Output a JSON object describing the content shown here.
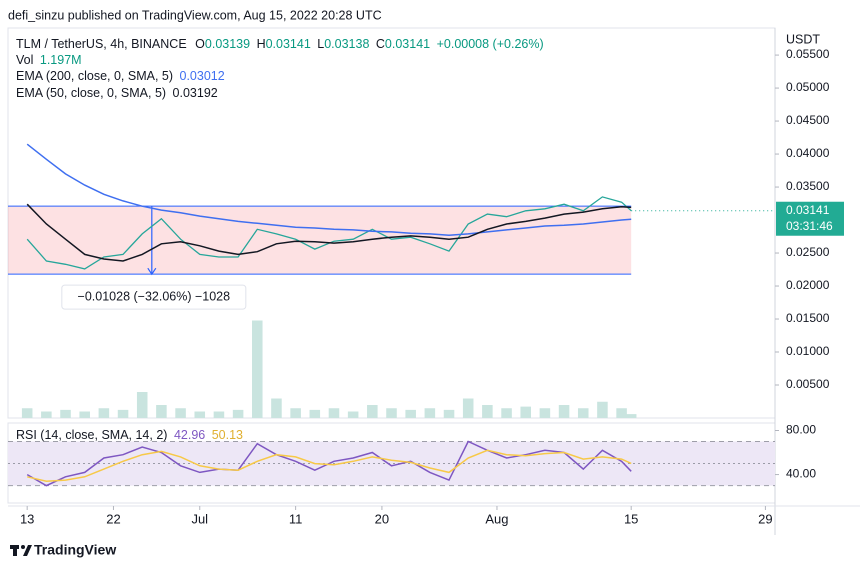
{
  "header": {
    "byline": "defi_sinzu published on TradingView.com, Aug 15, 2022 20:28 UTC",
    "ohlc": [
      {
        "label": "O",
        "value": 0.03139
      },
      {
        "label": "H",
        "value": 0.03141
      },
      {
        "label": "L",
        "value": 0.03138
      }
    ],
    "close_label": "C",
    "change": "+0.00008 (+0.26%)",
    "currency": "USDT",
    "countdown": "03:31:46",
    "logo": "TradingView"
  },
  "chart_data": [
    {
      "type": "line",
      "x": [
        "2022-06-13",
        "2022-06-15",
        "2022-06-17",
        "2022-06-19",
        "2022-06-21",
        "2022-06-23",
        "2022-06-25",
        "2022-06-27",
        "2022-06-29",
        "2022-07-01",
        "2022-07-03",
        "2022-07-05",
        "2022-07-07",
        "2022-07-09",
        "2022-07-11",
        "2022-07-13",
        "2022-07-15",
        "2022-07-17",
        "2022-07-19",
        "2022-07-21",
        "2022-07-23",
        "2022-07-25",
        "2022-07-27",
        "2022-07-29",
        "2022-07-31",
        "2022-08-02",
        "2022-08-04",
        "2022-08-06",
        "2022-08-08",
        "2022-08-10",
        "2022-08-12",
        "2022-08-14",
        "2022-08-15"
      ],
      "series": [
        {
          "name": "TLM / TetherUS, 4h, BINANCE",
          "color": "#26a69a",
          "values": [
            0.0271,
            0.0238,
            0.0233,
            0.0226,
            0.0244,
            0.0248,
            0.0279,
            0.0302,
            0.0271,
            0.0248,
            0.0244,
            0.0244,
            0.0286,
            0.0279,
            0.0271,
            0.0256,
            0.0268,
            0.0271,
            0.0286,
            0.0271,
            0.0274,
            0.0264,
            0.0253,
            0.0294,
            0.0309,
            0.0305,
            0.0314,
            0.0317,
            0.0324,
            0.0314,
            0.0335,
            0.0327,
            0.03141
          ]
        },
        {
          "name": "EMA (200, close, 0, SMA, 5)",
          "color": "#3f6ff0",
          "values": [
            0.0415,
            0.0392,
            0.037,
            0.0353,
            0.0339,
            0.0329,
            0.0321,
            0.0315,
            0.0311,
            0.0306,
            0.0302,
            0.0298,
            0.0295,
            0.0292,
            0.0289,
            0.0288,
            0.0286,
            0.0285,
            0.0283,
            0.0282,
            0.028,
            0.0279,
            0.0277,
            0.0279,
            0.0282,
            0.0285,
            0.0288,
            0.0291,
            0.0292,
            0.0294,
            0.0297,
            0.03,
            0.03012
          ]
        },
        {
          "name": "EMA (50, close, 0, SMA, 5)",
          "color": "#131722",
          "values": [
            0.0324,
            0.0294,
            0.0271,
            0.0248,
            0.0241,
            0.0238,
            0.0248,
            0.0264,
            0.0267,
            0.0261,
            0.0253,
            0.0248,
            0.0252,
            0.0264,
            0.0268,
            0.0267,
            0.0265,
            0.0267,
            0.0271,
            0.0274,
            0.0276,
            0.0274,
            0.0271,
            0.0274,
            0.0286,
            0.0294,
            0.0298,
            0.0303,
            0.0309,
            0.0312,
            0.0317,
            0.032,
            0.03192
          ]
        }
      ],
      "xlim": [
        "2022-06-11",
        "2022-08-30"
      ],
      "xticks": [
        {
          "value": "2022-06-13",
          "label": "13"
        },
        {
          "value": "2022-06-22",
          "label": "22"
        },
        {
          "value": "2022-07-01",
          "label": "Jul"
        },
        {
          "value": "2022-07-11",
          "label": "11"
        },
        {
          "value": "2022-07-20",
          "label": "20"
        },
        {
          "value": "2022-08-01",
          "label": "Aug"
        },
        {
          "value": "2022-08-15",
          "label": "15"
        },
        {
          "value": "2022-08-29",
          "label": "29"
        }
      ],
      "ylim": [
        0,
        0.0588
      ],
      "yticks": [
        {
          "value": 0.055,
          "label": "0.05500"
        },
        {
          "value": 0.05,
          "label": "0.05000"
        },
        {
          "value": 0.045,
          "label": "0.04500"
        },
        {
          "value": 0.04,
          "label": "0.04000"
        },
        {
          "value": 0.035,
          "label": "0.03500"
        },
        {
          "value": 0.025,
          "label": "0.02500"
        },
        {
          "value": 0.02,
          "label": "0.02000"
        },
        {
          "value": 0.015,
          "label": "0.01500"
        },
        {
          "value": 0.01,
          "label": "0.01000"
        },
        {
          "value": 0.005,
          "label": "0.00500"
        }
      ],
      "range_box": {
        "top": 0.0321,
        "bottom": 0.0218,
        "start": "2022-06-11",
        "end": "2022-08-15",
        "color": "#f23645",
        "line_color": "#2962ff"
      },
      "measure": {
        "x": "2022-06-26",
        "label": "−0.01028 (−32.06%) −1028"
      },
      "last_price_color": "#22ab94"
    },
    {
      "type": "bar",
      "title": "Vol",
      "legend_value": "1.197M",
      "color": "#c9e4df",
      "values": [
        3,
        2,
        2.5,
        2,
        3,
        2.5,
        8,
        4,
        3,
        2,
        2,
        2.5,
        30,
        6,
        3,
        2.5,
        3,
        2,
        4,
        3,
        2.5,
        3,
        2.5,
        6,
        4,
        3,
        3.5,
        3,
        4,
        3,
        5,
        3,
        1.197
      ],
      "ylim": [
        0,
        40
      ]
    },
    {
      "type": "line",
      "series": [
        {
          "name": "RSI (14, close, SMA, 14, 2)",
          "color": "#7e57c2",
          "values": [
            40,
            30,
            38,
            42,
            55,
            58,
            65,
            60,
            48,
            42,
            45,
            44,
            68,
            58,
            52,
            44,
            52,
            55,
            60,
            48,
            52,
            42,
            35,
            70,
            62,
            55,
            58,
            62,
            60,
            45,
            62,
            52,
            42.96
          ]
        },
        {
          "color": "#f7c948",
          "values": [
            38,
            34,
            35,
            38,
            45,
            52,
            58,
            61,
            56,
            48,
            45,
            44,
            52,
            58,
            56,
            50,
            49,
            52,
            56,
            53,
            51,
            46,
            42,
            55,
            62,
            58,
            57,
            59,
            60,
            54,
            56,
            54,
            50.13
          ]
        }
      ],
      "ylim": [
        16,
        85
      ],
      "yticks": [
        {
          "value": 80,
          "label": "80.00"
        },
        {
          "value": 40,
          "label": "40.00"
        }
      ],
      "bands": {
        "upper": 70,
        "middle": 50,
        "lower": 30,
        "color": "#ede7f6"
      }
    }
  ]
}
